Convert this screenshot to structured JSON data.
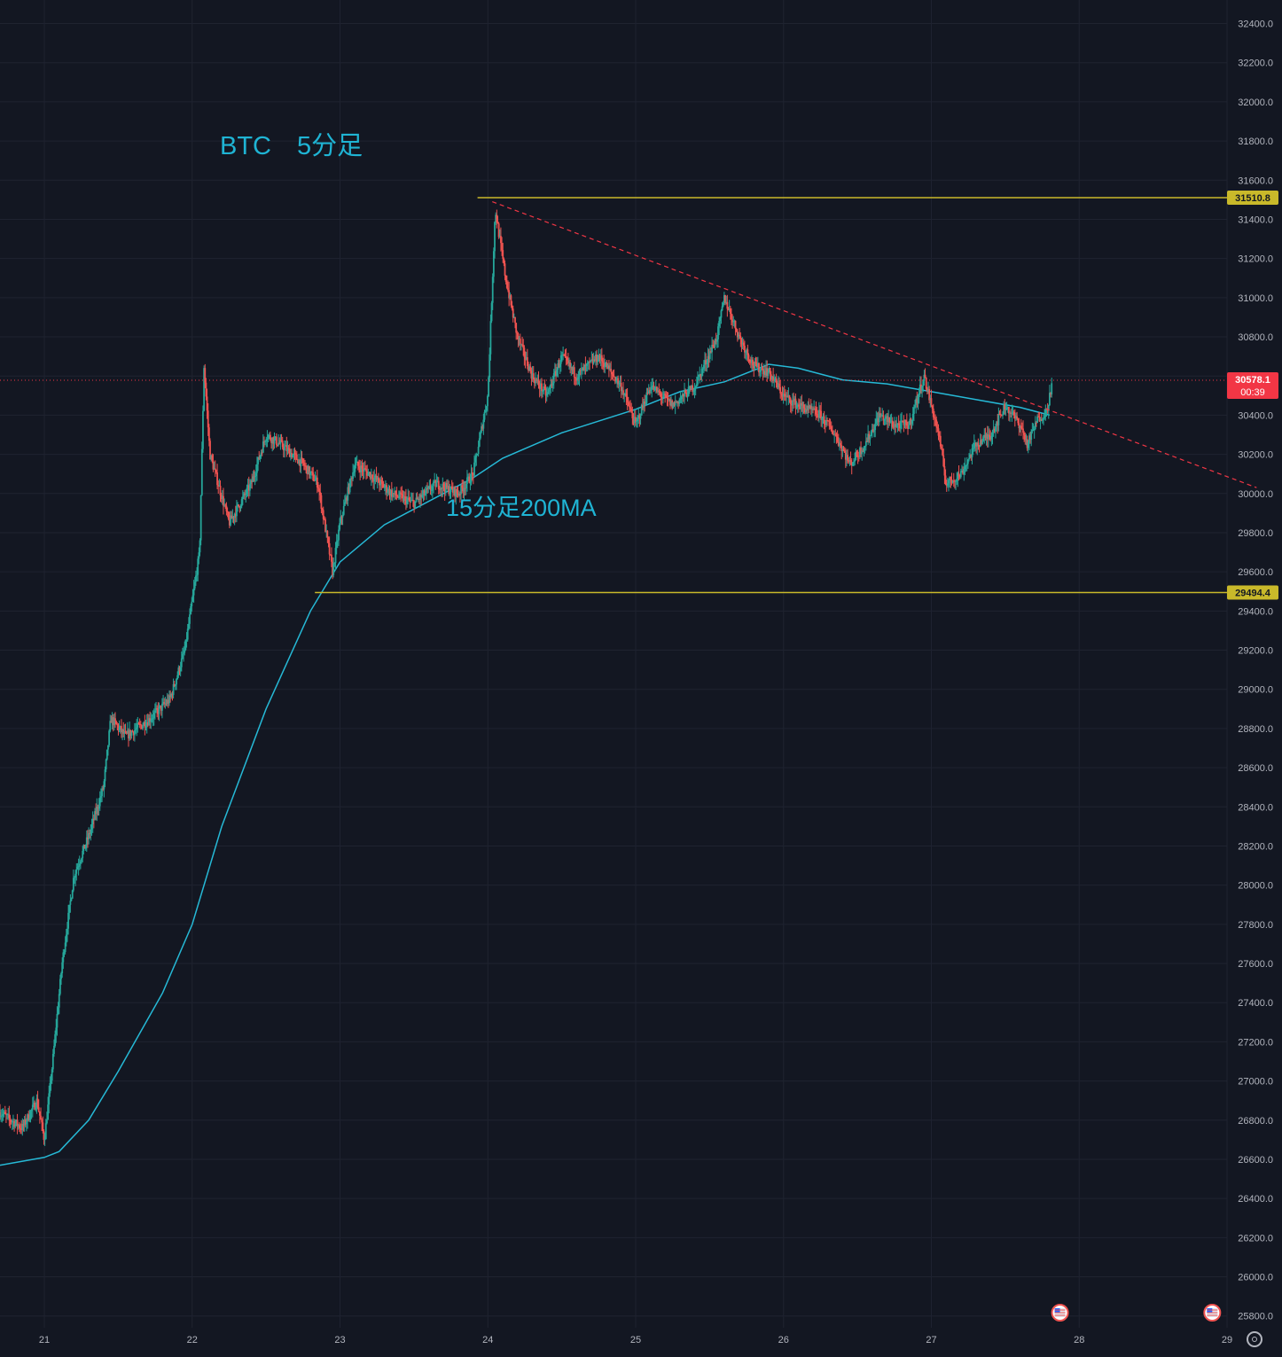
{
  "chart_data": {
    "type": "candlestick",
    "annotations": {
      "title": "BTC　5分足",
      "ma_label": "15分足200MA"
    },
    "y_axis": {
      "ylim": [
        25740,
        32520
      ],
      "ticks": [
        25800,
        26000,
        26200,
        26400,
        26600,
        26800,
        27000,
        27200,
        27400,
        27600,
        27800,
        28000,
        28200,
        28400,
        28600,
        28800,
        29000,
        29200,
        29400,
        29600,
        29800,
        30000,
        30200,
        30400,
        30600,
        30800,
        31000,
        31200,
        31400,
        31600,
        31800,
        32000,
        32200,
        32400
      ],
      "tick_labels": [
        "25800.0",
        "26000.0",
        "26200.0",
        "26400.0",
        "26600.0",
        "26800.0",
        "27000.0",
        "27200.0",
        "27400.0",
        "27600.0",
        "27800.0",
        "28000.0",
        "28200.0",
        "28400.0",
        "28600.0",
        "28800.0",
        "29000.0",
        "29200.0",
        "29400.0",
        "29600.0",
        "29800.0",
        "30000.0",
        "30200.0",
        "30400.0",
        "30600.0",
        "30800.0",
        "31000.0",
        "31200.0",
        "31400.0",
        "31600.0",
        "31800.0",
        "32000.0",
        "32200.0",
        "32400.0"
      ]
    },
    "x_axis": {
      "xlim": [
        20.7,
        29.0
      ],
      "ticks": [
        21,
        22,
        23,
        24,
        25,
        26,
        27,
        28,
        29
      ],
      "tick_labels": [
        "21",
        "22",
        "23",
        "24",
        "25",
        "26",
        "27",
        "28",
        "29"
      ]
    },
    "levels": [
      {
        "label": "31510.8",
        "value": 31510.8,
        "start_x": 23.93,
        "color": "#c9b92a"
      },
      {
        "label": "29494.4",
        "value": 29494.4,
        "start_x": 22.83,
        "color": "#c9b92a"
      }
    ],
    "current_price": {
      "label": "30578.1",
      "countdown": "00:39",
      "value": 30578.1,
      "color": "#f23645"
    },
    "trendline": {
      "from": [
        24.03,
        31490
      ],
      "to": [
        29.2,
        30030
      ],
      "color": "#f23645",
      "style": "dashed"
    },
    "ma_series": {
      "color": "#26b9d6",
      "points": [
        [
          20.7,
          26570
        ],
        [
          21.0,
          26610
        ],
        [
          21.1,
          26640
        ],
        [
          21.3,
          26800
        ],
        [
          21.5,
          27050
        ],
        [
          21.8,
          27450
        ],
        [
          22.0,
          27800
        ],
        [
          22.2,
          28300
        ],
        [
          22.5,
          28900
        ],
        [
          22.8,
          29400
        ],
        [
          23.0,
          29650
        ],
        [
          23.3,
          29840
        ],
        [
          23.6,
          29960
        ],
        [
          23.9,
          30080
        ],
        [
          24.1,
          30180
        ],
        [
          24.5,
          30310
        ],
        [
          25.0,
          30430
        ],
        [
          25.3,
          30520
        ],
        [
          25.6,
          30570
        ],
        [
          25.9,
          30660
        ],
        [
          26.1,
          30640
        ],
        [
          26.4,
          30580
        ],
        [
          26.7,
          30560
        ],
        [
          27.0,
          30520
        ],
        [
          27.3,
          30480
        ],
        [
          27.6,
          30440
        ],
        [
          27.8,
          30400
        ]
      ]
    },
    "price_path": [
      [
        20.7,
        26840
      ],
      [
        20.85,
        26760
      ],
      [
        20.95,
        26900
      ],
      [
        21.0,
        26700
      ],
      [
        21.05,
        27050
      ],
      [
        21.12,
        27600
      ],
      [
        21.2,
        28050
      ],
      [
        21.3,
        28250
      ],
      [
        21.4,
        28500
      ],
      [
        21.45,
        28850
      ],
      [
        21.55,
        28760
      ],
      [
        21.7,
        28840
      ],
      [
        21.85,
        28950
      ],
      [
        21.95,
        29200
      ],
      [
        22.05,
        29700
      ],
      [
        22.08,
        30650
      ],
      [
        22.12,
        30200
      ],
      [
        22.25,
        29850
      ],
      [
        22.4,
        30050
      ],
      [
        22.5,
        30300
      ],
      [
        22.6,
        30250
      ],
      [
        22.75,
        30150
      ],
      [
        22.85,
        30050
      ],
      [
        22.95,
        29600
      ],
      [
        23.0,
        29850
      ],
      [
        23.1,
        30150
      ],
      [
        23.2,
        30100
      ],
      [
        23.35,
        30000
      ],
      [
        23.5,
        29950
      ],
      [
        23.65,
        30050
      ],
      [
        23.8,
        30000
      ],
      [
        23.9,
        30100
      ],
      [
        24.0,
        30500
      ],
      [
        24.05,
        31450
      ],
      [
        24.12,
        31100
      ],
      [
        24.2,
        30800
      ],
      [
        24.3,
        30600
      ],
      [
        24.4,
        30500
      ],
      [
        24.5,
        30700
      ],
      [
        24.6,
        30600
      ],
      [
        24.75,
        30700
      ],
      [
        24.9,
        30550
      ],
      [
        25.0,
        30350
      ],
      [
        25.1,
        30550
      ],
      [
        25.25,
        30450
      ],
      [
        25.4,
        30550
      ],
      [
        25.55,
        30800
      ],
      [
        25.6,
        31000
      ],
      [
        25.7,
        30800
      ],
      [
        25.8,
        30650
      ],
      [
        25.9,
        30620
      ],
      [
        26.0,
        30500
      ],
      [
        26.1,
        30450
      ],
      [
        26.25,
        30400
      ],
      [
        26.35,
        30300
      ],
      [
        26.45,
        30150
      ],
      [
        26.55,
        30250
      ],
      [
        26.65,
        30400
      ],
      [
        26.75,
        30350
      ],
      [
        26.85,
        30350
      ],
      [
        26.95,
        30600
      ],
      [
        27.05,
        30300
      ],
      [
        27.1,
        30050
      ],
      [
        27.2,
        30100
      ],
      [
        27.3,
        30250
      ],
      [
        27.4,
        30300
      ],
      [
        27.5,
        30450
      ],
      [
        27.6,
        30350
      ],
      [
        27.65,
        30250
      ],
      [
        27.72,
        30380
      ],
      [
        27.78,
        30420
      ],
      [
        27.82,
        30580
      ]
    ],
    "event_markers": [
      {
        "x": 27.87,
        "name": "us-flag-icon"
      },
      {
        "x": 28.9,
        "name": "us-flag-icon"
      }
    ],
    "colors": {
      "background": "#131722",
      "up": "#26a69a",
      "down": "#ef5350",
      "grid": "#1f2330",
      "axis_text": "#b2b5be"
    }
  }
}
